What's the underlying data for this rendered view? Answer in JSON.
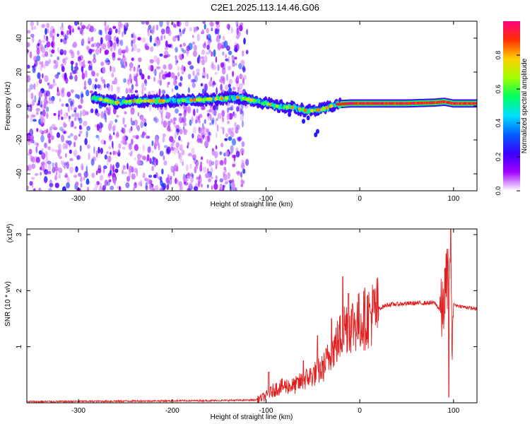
{
  "title": "C2E1.2025.113.14.46.G06",
  "chart_data": [
    {
      "type": "heatmap",
      "title": "C2E1.2025.113.14.46.G06",
      "xlabel": "Height of straight line (km)",
      "ylabel": "Frequency (Hz)",
      "xlim": [
        -355,
        125
      ],
      "ylim": [
        -50,
        50
      ],
      "x_ticks": [
        -300,
        -200,
        -100,
        0,
        100
      ],
      "y_ticks": [
        -40,
        -20,
        0,
        20,
        40
      ],
      "colorbar": {
        "label": "Normalized spectral amplitude",
        "range": [
          0,
          1
        ],
        "ticks": [
          "0.0",
          "0.2",
          "0.4",
          "0.6",
          "0.8"
        ],
        "colormap": [
          "#ffffff",
          "#a100ff",
          "#3a00ff",
          "#0060ff",
          "#00e0ff",
          "#00ff60",
          "#a0ff00",
          "#ffd000",
          "#ff3000",
          "#ff0080"
        ]
      },
      "ridge": {
        "description_points": [
          [
            -285,
            5
          ],
          [
            -260,
            2
          ],
          [
            -240,
            3
          ],
          [
            -200,
            3
          ],
          [
            -160,
            4
          ],
          [
            -130,
            5
          ],
          [
            -110,
            3
          ],
          [
            -90,
            0
          ],
          [
            -70,
            -1
          ],
          [
            -55,
            -3
          ],
          [
            -40,
            -2
          ],
          [
            -25,
            1
          ],
          [
            -10,
            1.5
          ],
          [
            0,
            1.5
          ],
          [
            20,
            1.5
          ],
          [
            50,
            1.5
          ],
          [
            80,
            2
          ],
          [
            90,
            2.5
          ],
          [
            100,
            1.5
          ],
          [
            125,
            1.5
          ]
        ]
      },
      "noise_region_x": [
        -355,
        -120
      ]
    },
    {
      "type": "line",
      "xlabel": "Height of straight line (km)",
      "ylabel": "SNR (10 * v/v)",
      "y_multiplier": "(x10^4)",
      "xlim": [
        -355,
        125
      ],
      "ylim": [
        0,
        3.1
      ],
      "x_ticks": [
        -300,
        -200,
        -100,
        0,
        100
      ],
      "y_ticks": [
        1,
        2,
        3
      ],
      "color": "#e02020",
      "envelope": {
        "x": [
          -355,
          -150,
          -110,
          -100,
          -90,
          -80,
          -70,
          -60,
          -50,
          -40,
          -30,
          -20,
          -15,
          -10,
          0,
          10,
          20,
          30,
          50,
          70,
          80,
          88,
          92,
          96,
          98,
          100,
          105,
          115,
          125
        ],
        "y": [
          0.02,
          0.04,
          0.05,
          0.12,
          0.25,
          0.3,
          0.3,
          0.4,
          0.5,
          0.6,
          0.9,
          1.2,
          1.4,
          1.4,
          1.45,
          1.55,
          1.68,
          1.75,
          1.77,
          1.78,
          1.78,
          1.6,
          2.1,
          2.6,
          1.2,
          1.75,
          1.73,
          1.7,
          1.67
        ]
      },
      "spikes": [
        {
          "x": -97,
          "y": 0.55
        },
        {
          "x": -60,
          "y": 0.75
        },
        {
          "x": -45,
          "y": 1.2
        },
        {
          "x": -30,
          "y": 1.5
        },
        {
          "x": -18,
          "y": 2.25
        },
        {
          "x": -12,
          "y": 1.95
        },
        {
          "x": 97,
          "y": 3.1
        },
        {
          "x": 95,
          "y": 0.1
        }
      ]
    }
  ]
}
